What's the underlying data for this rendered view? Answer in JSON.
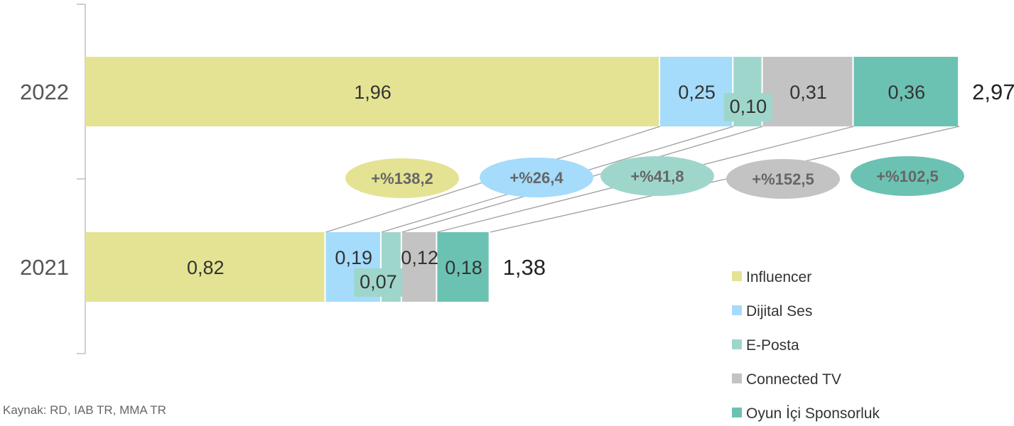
{
  "chart_data": {
    "type": "bar",
    "orientation": "horizontal",
    "stacked": true,
    "categories": [
      "2022",
      "2021"
    ],
    "series": [
      {
        "name": "Influencer",
        "color": "#e3e393",
        "values": [
          1.96,
          0.82
        ],
        "labels": [
          "1,96",
          "0,82"
        ]
      },
      {
        "name": "Dijital Ses",
        "color": "#a5dbfb",
        "values": [
          0.25,
          0.19
        ],
        "labels": [
          "0,25",
          "0,19"
        ]
      },
      {
        "name": "E-Posta",
        "color": "#9fd6cc",
        "values": [
          0.1,
          0.07
        ],
        "labels": [
          "0,10",
          "0,07"
        ]
      },
      {
        "name": "Connected TV",
        "color": "#c3c3c3",
        "values": [
          0.31,
          0.12
        ],
        "labels": [
          "0,31",
          "0,12"
        ]
      },
      {
        "name": "Oyun İçi Sponsorluk",
        "color": "#6cc2b2",
        "values": [
          0.36,
          0.18
        ],
        "labels": [
          "0,36",
          "0,18"
        ]
      }
    ],
    "totals": [
      {
        "category": "2022",
        "value": 2.97,
        "label": "2,97"
      },
      {
        "category": "2021",
        "value": 1.38,
        "label": "1,38"
      }
    ],
    "growth": [
      {
        "series": "Influencer",
        "label": "+%138,2",
        "color": "#e3e393"
      },
      {
        "series": "Dijital Ses",
        "label": "+%26,4",
        "color": "#a5dbfb"
      },
      {
        "series": "E-Posta",
        "label": "+%41,8",
        "color": "#9fd6cc"
      },
      {
        "series": "Connected TV",
        "label": "+%152,5",
        "color": "#c3c3c3"
      },
      {
        "series": "Oyun İçi Sponsorluk",
        "label": "+%102,5",
        "color": "#6cc2b2"
      }
    ],
    "xlim": [
      0,
      2.97
    ],
    "grid": false,
    "legend_position": "bottom-right"
  },
  "source": "Kaynak: RD, IAB TR, MMA TR"
}
